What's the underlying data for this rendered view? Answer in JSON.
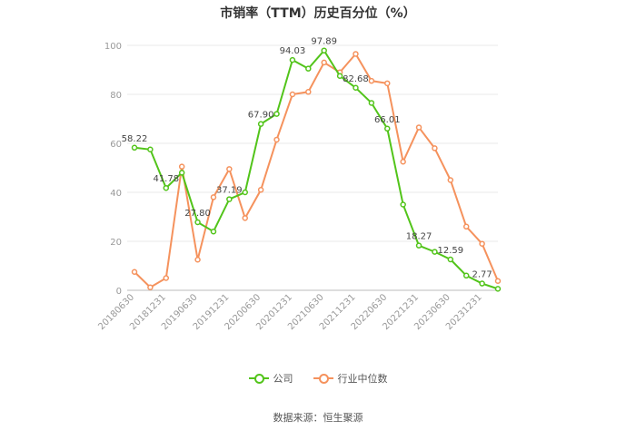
{
  "chart_data": {
    "type": "line",
    "title": "市销率（TTM）历史百分位（%）",
    "x": [
      "20180630",
      "20180930",
      "20181231",
      "20190331",
      "20190630",
      "20190930",
      "20191231",
      "20200331",
      "20200630",
      "20200930",
      "20201231",
      "20210331",
      "20210630",
      "20210930",
      "20211231",
      "20220331",
      "20220630",
      "20220930",
      "20221231",
      "20230331",
      "20230630",
      "20230930",
      "20231231",
      "20240331"
    ],
    "x_tick_labels": [
      "20180630",
      "20181231",
      "20190630",
      "20191231",
      "20200630",
      "20201231",
      "20210630",
      "20211231",
      "20220630",
      "20221231",
      "20230630",
      "20231231"
    ],
    "ylim": [
      0,
      100
    ],
    "y_ticks": [
      0,
      20,
      40,
      60,
      80,
      100
    ],
    "grid": true,
    "legend_position": "bottom",
    "series": [
      {
        "name": "公司",
        "color": "#52c41a",
        "values": [
          58.22,
          57.5,
          41.78,
          48.0,
          27.8,
          24.0,
          37.19,
          40.0,
          67.9,
          72.0,
          94.03,
          90.5,
          97.89,
          87.5,
          82.68,
          76.5,
          66.01,
          35.0,
          18.27,
          15.7,
          12.59,
          6.0,
          2.77,
          0.6
        ],
        "labels": {
          "0": "58.22",
          "2": "41.78",
          "4": "27.80",
          "6": "37.19",
          "8": "67.90",
          "10": "94.03",
          "12": "97.89",
          "14": "82.68",
          "16": "66.01",
          "18": "18.27",
          "20": "12.59",
          "22": "2.77"
        }
      },
      {
        "name": "行业中位数",
        "color": "#f5925d",
        "values": [
          7.5,
          1.2,
          5.0,
          50.5,
          12.5,
          38.0,
          49.5,
          29.5,
          41.0,
          61.5,
          80.0,
          81.0,
          93.0,
          89.0,
          96.5,
          85.5,
          84.5,
          52.5,
          66.5,
          58.0,
          45.0,
          26.0,
          19.0,
          3.8
        ]
      }
    ]
  },
  "legend": {
    "company": "公司",
    "industry": "行业中位数"
  },
  "source": "数据来源：恒生聚源"
}
